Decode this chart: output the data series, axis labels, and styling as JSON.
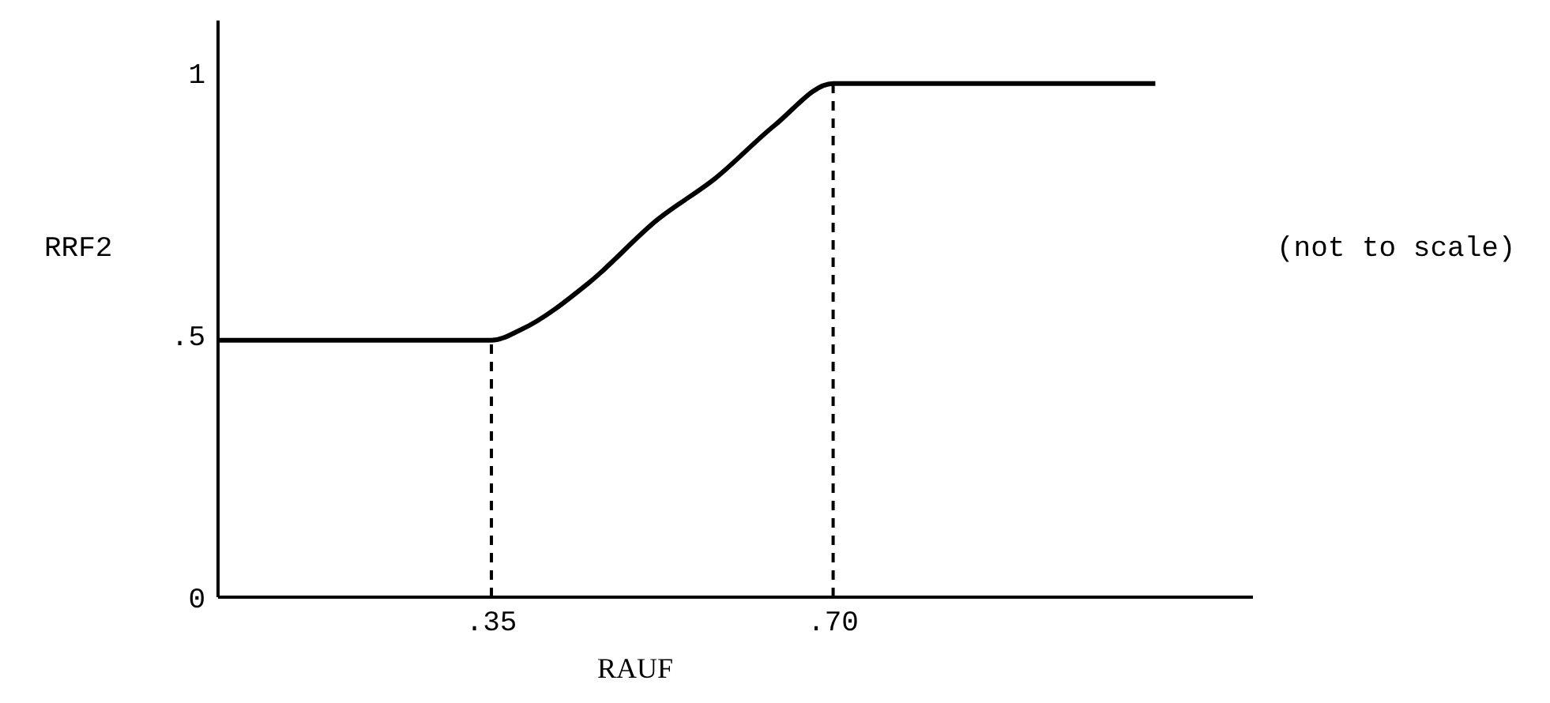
{
  "chart_data": {
    "type": "line",
    "xlabel": "RAUF",
    "ylabel": "RRF2",
    "annotations": [
      "(not to scale)"
    ],
    "x": [
      0.07,
      0.35,
      0.38,
      0.45,
      0.52,
      0.58,
      0.64,
      0.7,
      1.03
    ],
    "series": [
      {
        "color": "#000000",
        "values": [
          0.49,
          0.49,
          0.51,
          0.6,
          0.72,
          0.8,
          0.9,
          0.98,
          0.98
        ]
      }
    ],
    "xlim": [
      0.07,
      1.13
    ],
    "xticks": [
      {
        "value": 0.35,
        "label": ".35"
      },
      {
        "value": 0.7,
        "label": ".70"
      }
    ],
    "ylim": [
      0,
      1.1
    ],
    "yticks": [
      0,
      {
        "value": 0.5,
        "label": ".5"
      },
      1
    ],
    "ref_lines": [
      {
        "axis": "x",
        "value": 0.35,
        "line_style": "dashed",
        "color": "#000000"
      },
      {
        "axis": "x",
        "value": 0.7,
        "line_style": "dashed",
        "color": "#000000"
      }
    ],
    "marker": "none",
    "line_style": "solid"
  }
}
